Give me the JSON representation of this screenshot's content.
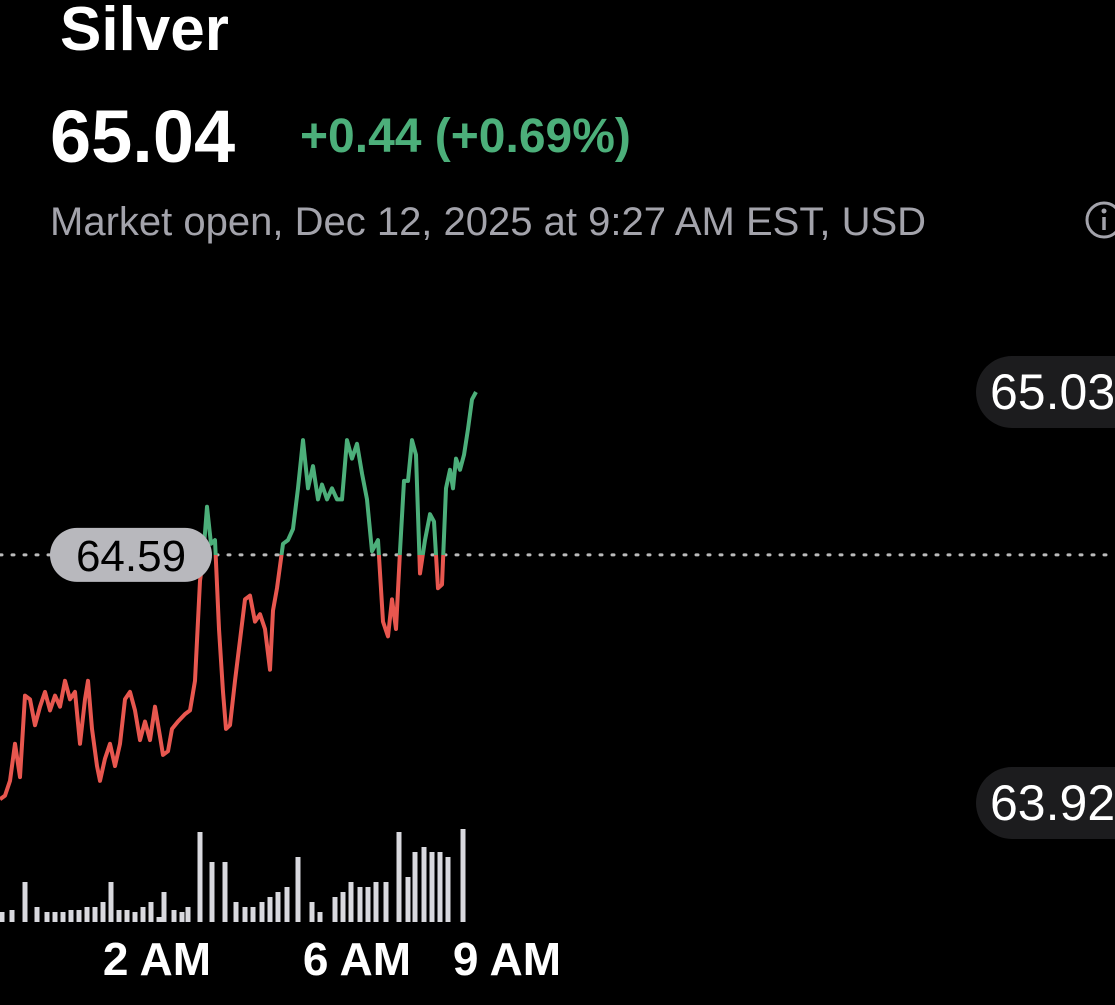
{
  "header": {
    "title": "Silver",
    "price": "65.04",
    "change": "+0.44 (+0.69%)",
    "status": "Market open, Dec 12, 2025 at 9:27 AM EST, USD"
  },
  "chart_data": {
    "type": "line",
    "x": [
      -1.14,
      -1.04,
      -0.94,
      -0.84,
      -0.74,
      -0.64,
      -0.54,
      -0.44,
      -0.34,
      -0.24,
      -0.14,
      -0.04,
      0.06,
      0.16,
      0.26,
      0.36,
      0.46,
      0.56,
      0.62,
      0.7,
      0.8,
      0.86,
      0.96,
      1.06,
      1.16,
      1.26,
      1.36,
      1.46,
      1.56,
      1.66,
      1.76,
      1.86,
      1.96,
      2.06,
      2.12,
      2.22,
      2.3,
      2.42,
      2.56,
      2.66,
      2.76,
      2.86,
      2.92,
      3.0,
      3.08,
      3.16,
      3.24,
      3.32,
      3.38,
      3.46,
      3.56,
      3.66,
      3.76,
      3.86,
      3.96,
      4.06,
      4.16,
      4.26,
      4.32,
      4.4,
      4.52,
      4.62,
      4.72,
      4.82,
      4.92,
      5.02,
      5.12,
      5.22,
      5.3,
      5.4,
      5.5,
      5.6,
      5.7,
      5.8,
      5.9,
      6.0,
      6.1,
      6.2,
      6.3,
      6.42,
      6.52,
      6.62,
      6.7,
      6.78,
      6.86,
      6.94,
      7.02,
      7.1,
      7.18,
      7.26,
      7.36,
      7.46,
      7.54,
      7.62,
      7.7,
      7.78,
      7.86,
      7.92,
      7.98,
      8.06,
      8.14,
      8.22,
      8.3,
      8.38
    ],
    "series": [
      {
        "color": "#4caf7a",
        "negative_color": "#e8574f",
        "values": [
          63.93,
          63.94,
          63.98,
          64.08,
          63.99,
          64.21,
          64.2,
          64.13,
          64.18,
          64.22,
          64.17,
          64.21,
          64.18,
          64.25,
          64.2,
          64.22,
          64.08,
          64.2,
          64.25,
          64.12,
          64.02,
          63.98,
          64.04,
          64.08,
          64.02,
          64.08,
          64.2,
          64.22,
          64.17,
          64.09,
          64.14,
          64.09,
          64.18,
          64.1,
          64.05,
          64.06,
          64.12,
          64.14,
          64.16,
          64.17,
          64.25,
          64.52,
          64.58,
          64.72,
          64.62,
          64.63,
          64.39,
          64.22,
          64.12,
          64.13,
          64.25,
          64.36,
          64.47,
          64.48,
          64.41,
          64.43,
          64.39,
          64.28,
          64.44,
          64.5,
          64.62,
          64.63,
          64.66,
          64.77,
          64.9,
          64.77,
          64.83,
          64.74,
          64.78,
          64.74,
          64.77,
          64.74,
          64.74,
          64.9,
          64.85,
          64.89,
          64.81,
          64.74,
          64.6,
          64.63,
          64.41,
          64.37,
          64.47,
          64.39,
          64.6,
          64.79,
          64.79,
          64.9,
          64.86,
          64.54,
          64.63,
          64.7,
          64.68,
          64.5,
          64.51,
          64.77,
          64.82,
          64.77,
          64.85,
          64.82,
          64.86,
          64.93,
          65.01,
          65.03
        ]
      }
    ],
    "baseline": 64.59,
    "ylim": [
      63.92,
      65.03
    ],
    "yticks": [
      65.03,
      63.92
    ],
    "xlim": [
      -1.14,
      21.16
    ],
    "xticks": [
      {
        "value": 2,
        "label": "2 AM"
      },
      {
        "value": 6,
        "label": "6 AM"
      },
      {
        "value": 9,
        "label": "9 AM"
      }
    ],
    "volume": {
      "color": "#d9d9de",
      "x": [
        -1.1,
        -0.9,
        -0.64,
        -0.4,
        -0.2,
        -0.04,
        0.12,
        0.28,
        0.44,
        0.6,
        0.76,
        0.92,
        1.08,
        1.24,
        1.4,
        1.56,
        1.72,
        1.88,
        2.04,
        2.14,
        2.34,
        2.5,
        2.62,
        2.86,
        3.1,
        3.36,
        3.58,
        3.76,
        3.92,
        4.1,
        4.26,
        4.42,
        4.6,
        4.82,
        5.1,
        5.26,
        5.56,
        5.72,
        5.88,
        6.06,
        6.22,
        6.38,
        6.58,
        6.84,
        7.02,
        7.16,
        7.34,
        7.5,
        7.66,
        7.82,
        8.12
      ],
      "values": [
        10,
        12,
        40,
        15,
        10,
        10,
        10,
        12,
        12,
        15,
        15,
        20,
        40,
        12,
        12,
        10,
        15,
        20,
        5,
        30,
        12,
        10,
        15,
        90,
        60,
        60,
        20,
        15,
        15,
        20,
        25,
        30,
        35,
        65,
        20,
        10,
        25,
        30,
        40,
        35,
        35,
        40,
        40,
        90,
        45,
        70,
        75,
        70,
        70,
        65,
        93
      ]
    }
  }
}
